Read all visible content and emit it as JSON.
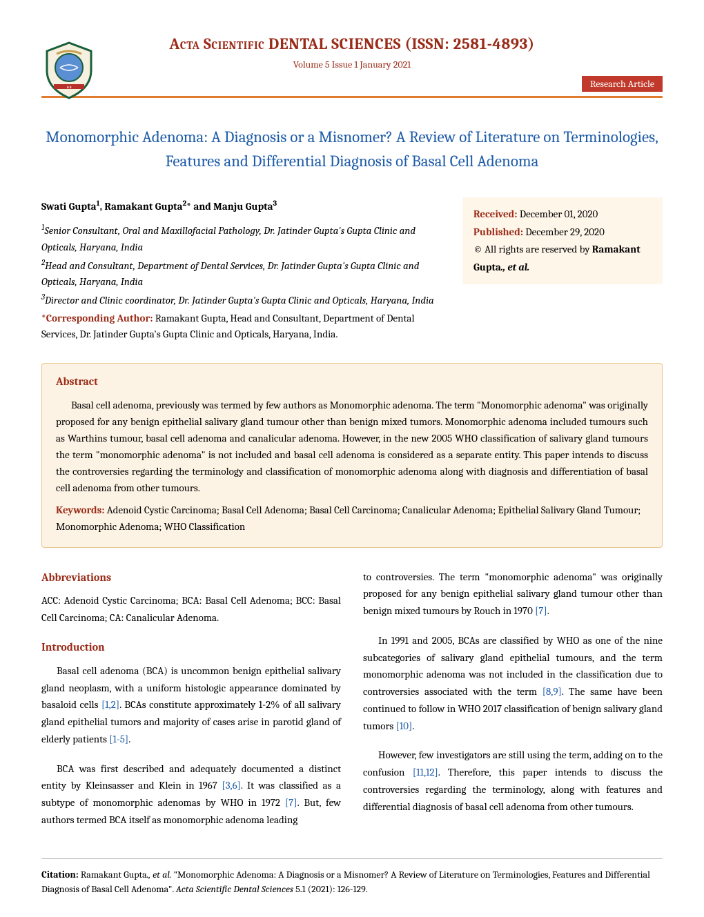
{
  "colors": {
    "accent_dark": "#9a2b18",
    "accent_orange": "#e07b2f",
    "badge_bg": "#c0392b",
    "title_blue": "#1d5ba8",
    "info_bg": "#fff6ea",
    "abstract_bg": "#fdf3e4",
    "abstract_border": "#e7c78f",
    "ref_blue": "#1d5ba8"
  },
  "header": {
    "journal": "Acta Scientific DENTAL SCIENCES (ISSN: 2581-4893)",
    "issue": "Volume 5 Issue 1 January 2021",
    "badge": "Research Article"
  },
  "article": {
    "title": "Monomorphic Adenoma: A Diagnosis or a Misnomer? A Review of Literature on Terminologies, Features and Differential Diagnosis of Basal Cell Adenoma",
    "authors_html": "Swati Gupta<sup>1</sup>, Ramakant Gupta<sup>2</sup>* and Manju Gupta<sup>3</sup>",
    "affiliations": [
      "<sup>1</sup>Senior Consultant, Oral and Maxillofacial Pathology, Dr. Jatinder Gupta's Gupta Clinic and Opticals, Haryana, India",
      "<sup>2</sup>Head and Consultant, Department of Dental Services, Dr. Jatinder Gupta's Gupta Clinic and Opticals, Haryana, India",
      "<sup>3</sup>Director and Clinic coordinator, Dr. Jatinder Gupta's Gupta Clinic and Opticals, Haryana, India"
    ],
    "corr_label": "*Corresponding Author: ",
    "corr_text": "Ramakant Gupta, Head and Consultant, Department of Dental Services, Dr. Jatinder Gupta's Gupta Clinic and Opticals, Haryana, India."
  },
  "info": {
    "received_label": "Received: ",
    "received_date": "December 01, 2020",
    "published_label": "Published: ",
    "published_date": "December 29, 2020",
    "rights_prefix": "© All rights are reserved by ",
    "rights_name": "Ramakant Gupta",
    "rights_suffix": "., et al."
  },
  "abstract": {
    "heading": "Abstract",
    "body": "Basal cell adenoma, previously was termed by few authors as Monomorphic adenoma. The term \"Monomorphic adenoma\" was originally proposed for any benign epithelial salivary gland tumour other than benign mixed tumors. Monomorphic adenoma included tumours such as Warthins tumour, basal cell adenoma and canalicular adenoma. However, in the new 2005 WHO classification of salivary gland tumours the term \"monomorphic adenoma\" is not included and basal cell adenoma is considered as a separate entity. This paper intends to discuss the controversies regarding the terminology and classification of monomorphic adenoma along with diagnosis and differentiation of basal cell adenoma from other tumours.",
    "kw_label": "Keywords: ",
    "keywords": "Adenoid Cystic Carcinoma; Basal Cell Adenoma; Basal Cell Carcinoma; Canalicular Adenoma; Epithelial Salivary Gland Tumour; Monomorphic Adenoma; WHO Classification"
  },
  "sections": {
    "abbrev_heading": "Abbreviations",
    "abbrev_text": "ACC: Adenoid Cystic Carcinoma; BCA: Basal Cell Adenoma; BCC: Basal Cell Carcinoma; CA: Canalicular Adenoma.",
    "intro_heading": "Introduction",
    "intro_p1_a": "Basal cell adenoma (BCA) is uncommon benign epithelial salivary gland neoplasm, with a uniform histologic appearance dominated by basaloid cells ",
    "intro_p1_ref1": "[1,2]",
    "intro_p1_b": ". BCAs constitute approximately 1-2% of all salivary gland epithelial tumors and majority of cases arise in parotid gland of elderly patients ",
    "intro_p1_ref2": "[1-5]",
    "intro_p1_c": ".",
    "intro_p2_a": "BCA was first described and adequately documented a distinct entity by Kleinsasser and Klein in 1967 ",
    "intro_p2_ref1": "[3,6]",
    "intro_p2_b": ". It was classified as a subtype of monomorphic adenomas by WHO in 1972 ",
    "intro_p2_ref2": "[7]",
    "intro_p2_c": ". But, few authors termed BCA itself as monomorphic adenoma leading",
    "right_p1_a": "to controversies. The term \"monomorphic adenoma\" was originally proposed for any benign epithelial salivary gland tumour other than benign mixed tumours by Rouch in 1970 ",
    "right_p1_ref": "[7]",
    "right_p1_b": ".",
    "right_p2_a": "In 1991 and 2005, BCAs are classified by WHO as one of the nine subcategories of salivary gland epithelial tumours, and the term monomorphic adenoma was not included in the classification due to controversies associated with the term ",
    "right_p2_ref1": "[8,9]",
    "right_p2_b": ". The same have been continued to follow in WHO 2017 classification of benign salivary gland tumors ",
    "right_p2_ref2": "[10]",
    "right_p2_c": ".",
    "right_p3_a": "However, few investigators are still using the term, adding on to the confusion ",
    "right_p3_ref": "[11,12]",
    "right_p3_b": ". Therefore, this paper intends to discuss the controversies regarding the terminology, along with features and differential diagnosis of basal cell adenoma from other tumours."
  },
  "citation": {
    "label": "Citation: ",
    "author": "Ramakant Gupta",
    "etal": "., et al.",
    "text": " \"Monomorphic Adenoma: A Diagnosis or a Misnomer? A Review of Literature on Terminologies, Features and  Differential Diagnosis of Basal Cell Adenoma\". ",
    "journal": "Acta Scientific Dental Sciences ",
    "volref": "5.1 (2021): 126-129."
  }
}
